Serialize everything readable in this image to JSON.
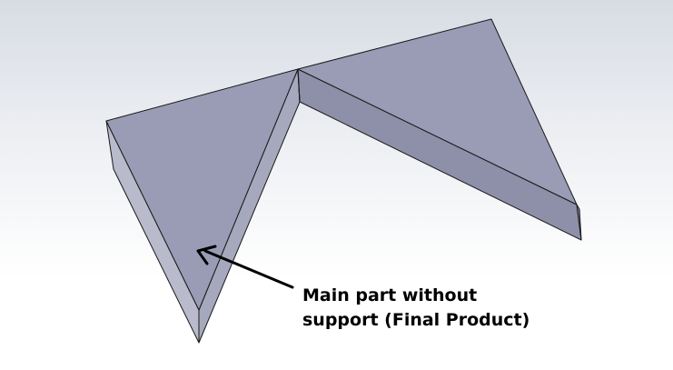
{
  "annotation": {
    "line1": "Main part without",
    "line2": "support (Final Product)"
  },
  "colors": {
    "top_face": "#9a9cb6",
    "side_face": "#b9bbcc",
    "dark_side": "#7c7f96",
    "edge": "#1a1a1a",
    "arrow": "#000000"
  }
}
